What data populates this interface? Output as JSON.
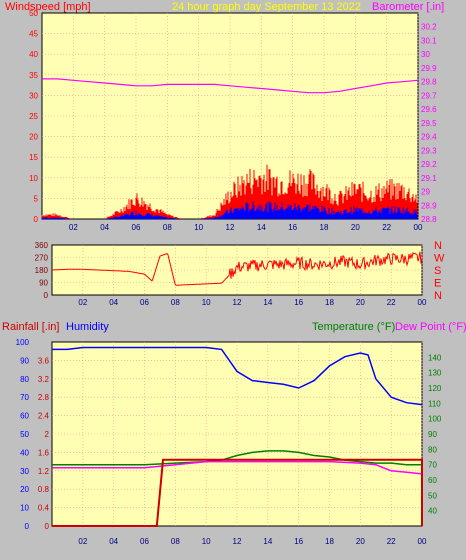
{
  "colors": {
    "windspeed": "#ff0000",
    "gust_alt": "#0000ff",
    "barometer": "#ff00ff",
    "title": "#ffff00",
    "rain": "#cc0000",
    "humidity": "#0000ff",
    "temperature": "#008000",
    "dewpoint": "#ff00ff",
    "plot_bg": "#ffffb4",
    "grid": "#ff9090"
  },
  "x_tick_labels": [
    "02",
    "04",
    "06",
    "08",
    "10",
    "12",
    "14",
    "16",
    "18",
    "20",
    "22",
    "00"
  ],
  "chart_data": [
    {
      "type": "line",
      "id": "wind_baro",
      "title": "24 hour graph day   September 13 2022",
      "left_axis_label": "Windspeed [mph]",
      "right_axis_label": "Barometer [.in]",
      "ylim_left": [
        0,
        50
      ],
      "ylim_right": [
        28.8,
        30.3
      ],
      "y_ticks_left": [
        "0",
        "5",
        "10",
        "15",
        "20",
        "25",
        "30",
        "35",
        "40",
        "45",
        "50"
      ],
      "y_ticks_right": [
        "28.8",
        "28.9",
        "29",
        "29.1",
        "29.2",
        "29.3",
        "29.4",
        "29.5",
        "29.6",
        "29.7",
        "29.8",
        "29.9",
        "30",
        "30.1",
        "30.2"
      ],
      "grid": true,
      "series": [
        {
          "name": "Windspeed [mph]",
          "axis": "left",
          "x_hours": [
            0,
            1,
            2,
            3,
            4,
            5,
            6,
            7,
            8,
            9,
            10,
            11,
            12,
            13,
            14,
            15,
            16,
            17,
            18,
            19,
            20,
            21,
            22,
            23,
            24
          ],
          "values": [
            1,
            1,
            0,
            0,
            0,
            2,
            5,
            3,
            1,
            0,
            0,
            1,
            6,
            9,
            10,
            9,
            9,
            9,
            7,
            5,
            7,
            6,
            7,
            7,
            5
          ]
        },
        {
          "name": "Barometer [.in]",
          "axis": "right",
          "x_hours": [
            0,
            1,
            2,
            3,
            4,
            5,
            6,
            7,
            8,
            9,
            10,
            11,
            12,
            13,
            14,
            15,
            16,
            17,
            18,
            19,
            20,
            21,
            22,
            23,
            24
          ],
          "values": [
            29.82,
            29.82,
            29.81,
            29.8,
            29.79,
            29.78,
            29.77,
            29.77,
            29.78,
            29.78,
            29.78,
            29.78,
            29.77,
            29.76,
            29.75,
            29.74,
            29.73,
            29.72,
            29.72,
            29.73,
            29.75,
            29.77,
            29.79,
            29.8,
            29.81
          ]
        }
      ]
    },
    {
      "type": "line",
      "id": "wind_direction",
      "ylim": [
        0,
        360
      ],
      "y_ticks": [
        "0",
        "90",
        "180",
        "270",
        "360"
      ],
      "direction_labels": [
        "N",
        "W",
        "S",
        "E",
        "N"
      ],
      "grid": true,
      "series": [
        {
          "x_hours": [
            0,
            1,
            2,
            3,
            4,
            5,
            6,
            6.5,
            7,
            7.5,
            8,
            9,
            10,
            11,
            12,
            13,
            14,
            15,
            16,
            17,
            18,
            19,
            20,
            21,
            22,
            23,
            24
          ],
          "values": [
            180,
            185,
            185,
            180,
            175,
            170,
            150,
            100,
            280,
            300,
            70,
            75,
            80,
            85,
            200,
            210,
            220,
            220,
            230,
            220,
            230,
            240,
            220,
            250,
            260,
            260,
            270
          ]
        }
      ]
    },
    {
      "type": "line",
      "id": "rain_hum_temp",
      "left_axis_label": "Rainfall [.in]",
      "left_axis_label_2": "Humidity",
      "right_axis_label": "Temperature (°F)",
      "right_axis_label_2": "Dew Point (°F)",
      "ylim_humidity": [
        0,
        100
      ],
      "ylim_rain": [
        0,
        4.0
      ],
      "ylim_temp": [
        30,
        150
      ],
      "y_ticks_humidity": [
        "0",
        "10",
        "20",
        "30",
        "40",
        "50",
        "60",
        "70",
        "80",
        "90",
        "100"
      ],
      "y_ticks_rain": [
        "0",
        "0.4",
        "0.8",
        "1.2",
        "1.6",
        "2",
        "2.4",
        "2.8",
        "3.2",
        "3.6"
      ],
      "y_ticks_temp": [
        "40",
        "50",
        "60",
        "70",
        "80",
        "90",
        "100",
        "110",
        "120",
        "130",
        "140"
      ],
      "grid": true,
      "series": [
        {
          "name": "Rainfall [.in]",
          "axis": "rain",
          "x_hours": [
            0,
            6.8,
            7.2,
            24,
            24
          ],
          "values": [
            0,
            0,
            1.44,
            1.44,
            0
          ]
        },
        {
          "name": "Humidity",
          "axis": "humidity",
          "x_hours": [
            0,
            1,
            2,
            4,
            6,
            8,
            10,
            11,
            12,
            13,
            14,
            15,
            16,
            17,
            18,
            19,
            20,
            20.5,
            21,
            22,
            23,
            24
          ],
          "values": [
            96,
            96,
            97,
            97,
            97,
            97,
            97,
            96,
            84,
            79,
            78,
            77,
            75,
            79,
            87,
            92,
            94,
            93,
            80,
            70,
            67,
            66
          ]
        },
        {
          "name": "Temperature (°F)",
          "axis": "temp",
          "x_hours": [
            0,
            2,
            4,
            6,
            8,
            10,
            11,
            12,
            13,
            14,
            15,
            16,
            17,
            18,
            19,
            20,
            21,
            22,
            23,
            24
          ],
          "values": [
            70,
            70,
            70,
            70,
            71,
            72,
            73,
            76,
            78,
            79,
            79,
            78,
            76,
            75,
            73,
            72,
            71,
            71,
            70,
            70
          ]
        },
        {
          "name": "Dew Point (°F)",
          "axis": "temp",
          "x_hours": [
            0,
            2,
            4,
            6,
            8,
            10,
            12,
            14,
            16,
            18,
            20,
            21,
            22,
            23,
            24
          ],
          "values": [
            68,
            68,
            68,
            68,
            70,
            72,
            72,
            72,
            72,
            72,
            71,
            70,
            66,
            65,
            64
          ]
        }
      ]
    }
  ]
}
